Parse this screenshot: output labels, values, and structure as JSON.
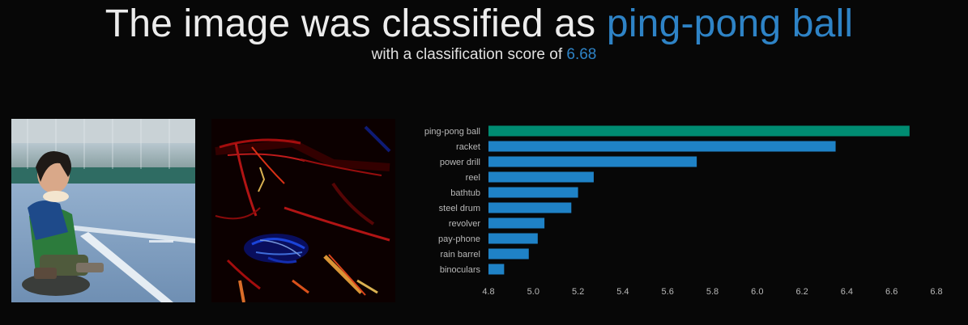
{
  "header": {
    "title_prefix": "The image was classified as",
    "predicted_label": "ping-pong ball",
    "subtitle_prefix": "with a classification score of",
    "score": "6.68"
  },
  "colors": {
    "background": "#070707",
    "accent": "#2e83c6",
    "top_bar": "#008c72",
    "other_bars": "#1f82c6"
  },
  "chart_data": {
    "type": "bar",
    "orientation": "horizontal",
    "categories": [
      "ping-pong ball",
      "racket",
      "power drill",
      "reel",
      "bathtub",
      "steel drum",
      "revolver",
      "pay-phone",
      "rain barrel",
      "binoculars"
    ],
    "values": [
      6.68,
      6.35,
      5.73,
      5.27,
      5.2,
      5.17,
      5.05,
      5.02,
      4.98,
      4.87
    ],
    "xlim": [
      4.8,
      6.8
    ],
    "xticks": [
      "4.8",
      "5.0",
      "5.2",
      "5.4",
      "5.6",
      "5.8",
      "6.0",
      "6.2",
      "6.4",
      "6.6",
      "6.8"
    ],
    "grid": false
  }
}
